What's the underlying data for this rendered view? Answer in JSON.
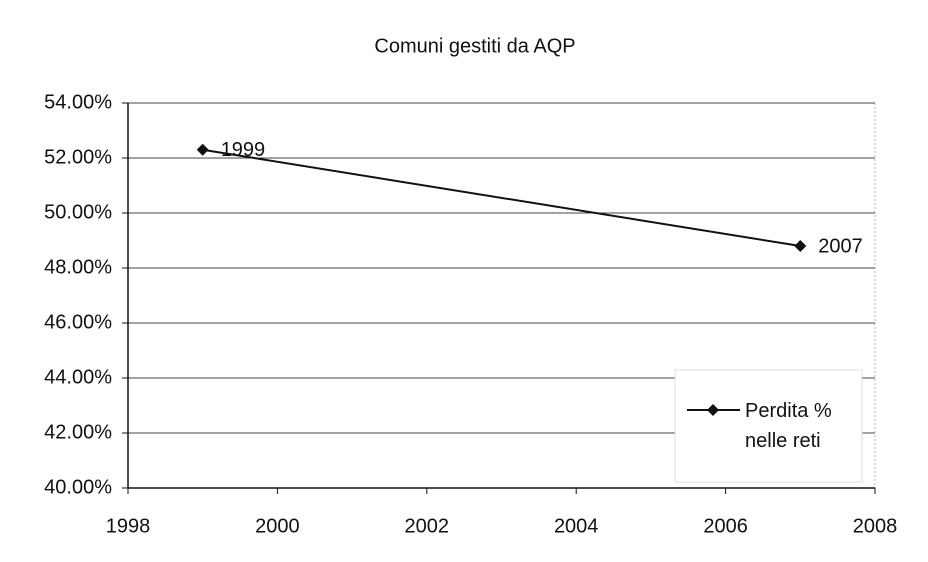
{
  "chart_data": {
    "type": "line",
    "title": "Comuni gestiti da AQP",
    "x": [
      1999,
      2007
    ],
    "series": [
      {
        "name": "Perdita % nelle reti",
        "color": "#111111",
        "values": [
          52.3,
          48.8
        ]
      }
    ],
    "xlim": [
      1998,
      2008
    ],
    "xticks": [
      1998,
      2000,
      2002,
      2004,
      2006,
      2008
    ],
    "ylim": [
      40,
      54
    ],
    "yticks": [
      {
        "value": 40,
        "label": "40.00%"
      },
      {
        "value": 42,
        "label": "42.00%"
      },
      {
        "value": 44,
        "label": "44.00%"
      },
      {
        "value": 46,
        "label": "46.00%"
      },
      {
        "value": 48,
        "label": "48.00%"
      },
      {
        "value": 50,
        "label": "50.00%"
      },
      {
        "value": 52,
        "label": "52.00%"
      },
      {
        "value": 54,
        "label": "54.00%"
      }
    ],
    "grid": true,
    "legend": "right"
  }
}
